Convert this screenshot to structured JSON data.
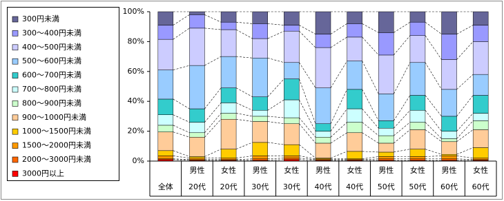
{
  "chart_data": {
    "type": "stacked_bar_100",
    "categories": [
      [
        "全体"
      ],
      [
        "男性",
        "20代"
      ],
      [
        "女性",
        "20代"
      ],
      [
        "男性",
        "30代"
      ],
      [
        "女性",
        "30代"
      ],
      [
        "男性",
        "40代"
      ],
      [
        "女性",
        "40代"
      ],
      [
        "男性",
        "50代"
      ],
      [
        "女性",
        "50代"
      ],
      [
        "男性",
        "60代"
      ],
      [
        "女性",
        "60代"
      ]
    ],
    "series": [
      {
        "name": "300円未満",
        "color": "#666699",
        "values": [
          9,
          2,
          7,
          8,
          9,
          15,
          8,
          14,
          7,
          15,
          9
        ]
      },
      {
        "name": "300～400円未満",
        "color": "#9999ff",
        "values": [
          9.5,
          9,
          5,
          10,
          4,
          9,
          9,
          15,
          9,
          17,
          11
        ]
      },
      {
        "name": "400～500円未満",
        "color": "#ccccff",
        "values": [
          20.5,
          25,
          18,
          13,
          21,
          27,
          16,
          26,
          18,
          20,
          22
        ]
      },
      {
        "name": "500～600円未満",
        "color": "#99ccff",
        "values": [
          19.5,
          29,
          21,
          26,
          11,
          24,
          19,
          18,
          22,
          18,
          14
        ]
      },
      {
        "name": "600～700円未満",
        "color": "#33cccc",
        "values": [
          10.5,
          9,
          10,
          9,
          14,
          5,
          13,
          5,
          10,
          10,
          12
        ]
      },
      {
        "name": "700～800円未満",
        "color": "#ccffff",
        "values": [
          7,
          7,
          7,
          4,
          12,
          4,
          9,
          5,
          8,
          5,
          5
        ]
      },
      {
        "name": "800～900円未満",
        "color": "#ccffcc",
        "values": [
          4.5,
          3,
          4,
          3.5,
          4,
          4,
          7,
          5,
          5,
          2,
          6
        ]
      },
      {
        "name": "900～1000円未満",
        "color": "#ffcc99",
        "values": [
          12.5,
          13,
          20,
          14,
          14,
          10,
          12.5,
          6,
          13,
          8.5,
          12
        ]
      },
      {
        "name": "1000～1500円未満",
        "color": "#ffcc00",
        "values": [
          3.5,
          1,
          6,
          9,
          7.5,
          0.5,
          5,
          3,
          5,
          1,
          7
        ]
      },
      {
        "name": "1500～2000円未満",
        "color": "#ff9900",
        "values": [
          2,
          1,
          1,
          2,
          1.5,
          0.5,
          0.5,
          1.5,
          1.5,
          2,
          1
        ]
      },
      {
        "name": "2000～3000円未満",
        "color": "#ff6600",
        "values": [
          0.5,
          0.5,
          0.5,
          1,
          1,
          0.5,
          0.5,
          1,
          1,
          1,
          0.5
        ]
      },
      {
        "name": "3000円以上",
        "color": "#ff0000",
        "values": [
          1,
          0.5,
          0.5,
          0.5,
          1,
          0.5,
          0.5,
          0.5,
          0.5,
          0.5,
          0.5
        ]
      }
    ],
    "ylim": [
      0,
      100
    ],
    "yticks": [
      {
        "value": 0,
        "label": "0%"
      },
      {
        "value": 20,
        "label": "20%"
      },
      {
        "value": 40,
        "label": "40%"
      },
      {
        "value": 60,
        "label": "60%"
      },
      {
        "value": 80,
        "label": "80%"
      },
      {
        "value": 100,
        "label": "100%"
      }
    ],
    "connector_lines": true
  }
}
